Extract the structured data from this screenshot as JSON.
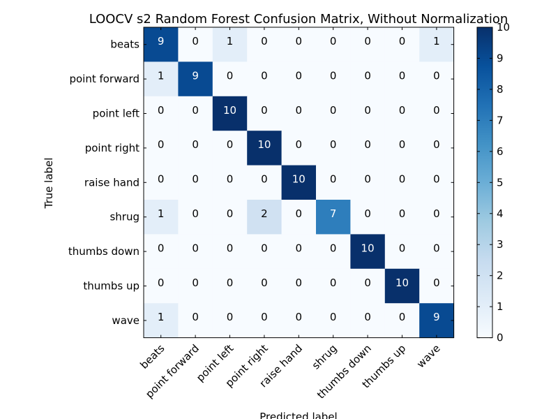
{
  "chart_data": {
    "type": "heatmap",
    "title": "LOOCV s2 Random Forest Confusion Matrix, Without Normalization",
    "xlabel": "Predicted label",
    "ylabel": "True label",
    "x_categories": [
      "beats",
      "point forward",
      "point left",
      "point right",
      "raise hand",
      "shrug",
      "thumbs down",
      "thumbs up",
      "wave"
    ],
    "y_categories": [
      "beats",
      "point forward",
      "point left",
      "point right",
      "raise hand",
      "shrug",
      "thumbs down",
      "thumbs up",
      "wave"
    ],
    "values": [
      [
        9,
        0,
        1,
        0,
        0,
        0,
        0,
        0,
        1
      ],
      [
        1,
        9,
        0,
        0,
        0,
        0,
        0,
        0,
        0
      ],
      [
        0,
        0,
        10,
        0,
        0,
        0,
        0,
        0,
        0
      ],
      [
        0,
        0,
        0,
        10,
        0,
        0,
        0,
        0,
        0
      ],
      [
        0,
        0,
        0,
        0,
        10,
        0,
        0,
        0,
        0
      ],
      [
        1,
        0,
        0,
        2,
        0,
        7,
        0,
        0,
        0
      ],
      [
        0,
        0,
        0,
        0,
        0,
        0,
        10,
        0,
        0
      ],
      [
        0,
        0,
        0,
        0,
        0,
        0,
        0,
        10,
        0
      ],
      [
        1,
        0,
        0,
        0,
        0,
        0,
        0,
        0,
        9
      ]
    ],
    "colorbar": {
      "colormap": "Blues",
      "range": [
        0,
        10
      ],
      "ticks": [
        0,
        1,
        2,
        3,
        4,
        5,
        6,
        7,
        8,
        9,
        10
      ]
    },
    "x_tick_rotation_deg": 45,
    "grid": false
  }
}
